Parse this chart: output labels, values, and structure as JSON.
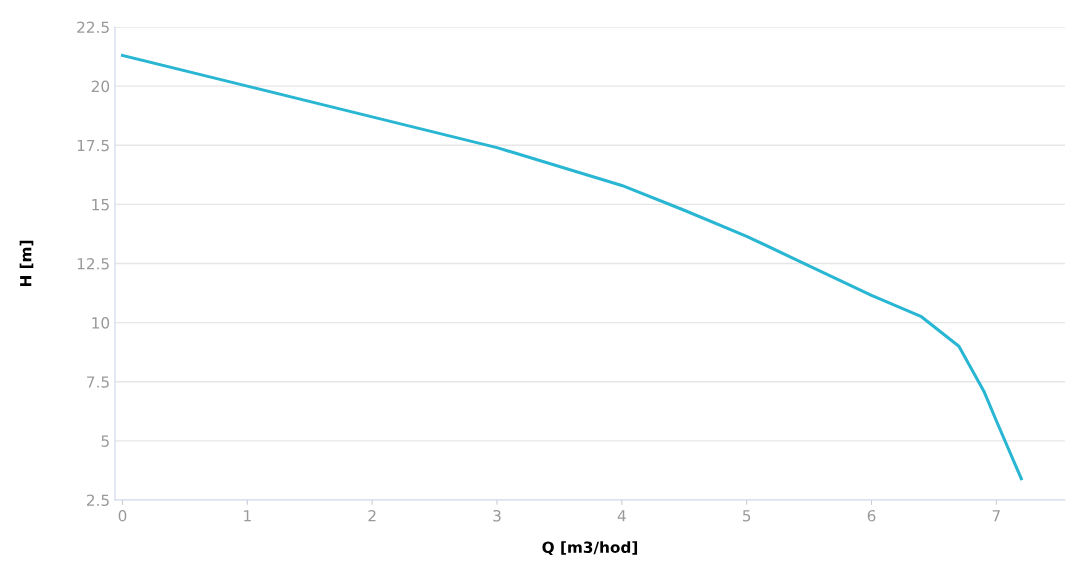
{
  "chart_data": {
    "type": "line",
    "xlabel": "Q [m3/hod]",
    "ylabel": "H [m]",
    "x": [
      0,
      1,
      2,
      3,
      4,
      4.5,
      5,
      5.5,
      6,
      6.4,
      6.7,
      6.9,
      7,
      7.2
    ],
    "series": [
      {
        "color": "#29b6d3",
        "values": [
          21.3,
          20.0,
          18.7,
          17.4,
          15.8,
          14.75,
          13.65,
          12.4,
          11.15,
          10.25,
          9.0,
          7.1,
          5.85,
          3.4
        ]
      }
    ],
    "xlim": [
      -0.06,
      7.55
    ],
    "ylim": [
      2.5,
      22.5
    ],
    "xticks": [
      0,
      1,
      2,
      3,
      4,
      5,
      6,
      7
    ],
    "yticks": [
      2.5,
      5,
      7.5,
      10,
      12.5,
      15,
      17.5,
      20,
      22.5
    ],
    "grid": "y",
    "marker": "none",
    "line_style": "solid"
  }
}
